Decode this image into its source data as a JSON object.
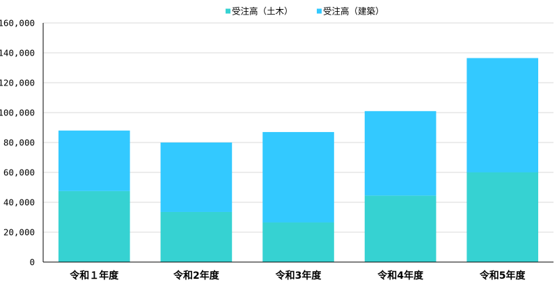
{
  "chart_data": {
    "type": "bar",
    "stacked": true,
    "categories": [
      "令和１年度",
      "令和2年度",
      "令和3年度",
      "令和4年度",
      "令和5年度"
    ],
    "series": [
      {
        "name": "受注高（土木）",
        "color": "#36d2d2",
        "values": [
          47500,
          33500,
          26500,
          44500,
          60000
        ]
      },
      {
        "name": "受注高（建築）",
        "color": "#33c9ff",
        "values": [
          40500,
          46500,
          60500,
          56500,
          76500
        ]
      }
    ],
    "yticks": [
      "0",
      "20,000",
      "40,000",
      "60,000",
      "80,000",
      "100,000",
      "120,000",
      "140,000",
      "160,000"
    ],
    "ylim": [
      0,
      160000
    ],
    "grid": true,
    "legend_position": "top-center",
    "title": "",
    "xlabel": "",
    "ylabel": ""
  }
}
